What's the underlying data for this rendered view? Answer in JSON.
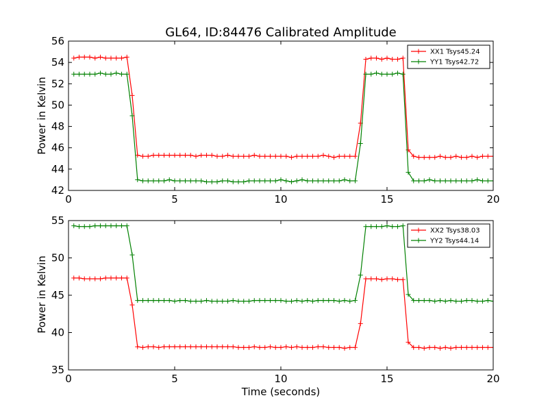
{
  "chart_data": [
    {
      "type": "line",
      "title": "GL64, ID:84476 Calibrated Amplitude",
      "xlabel": "",
      "ylabel": "Power in Kelvin",
      "xlim": [
        0,
        20
      ],
      "ylim": [
        42,
        56
      ],
      "xticks": [
        "0",
        "5",
        "10",
        "15",
        "20"
      ],
      "yticks": [
        "42",
        "44",
        "46",
        "48",
        "50",
        "52",
        "54",
        "56"
      ],
      "grid": false,
      "legend_position": "top-right",
      "x": [
        0.25,
        0.5,
        0.75,
        1.0,
        1.25,
        1.5,
        1.75,
        2.0,
        2.25,
        2.5,
        2.75,
        3.0,
        3.25,
        3.5,
        3.75,
        4.0,
        4.25,
        4.5,
        4.75,
        5.0,
        5.25,
        5.5,
        5.75,
        6.0,
        6.25,
        6.5,
        6.75,
        7.0,
        7.25,
        7.5,
        7.75,
        8.0,
        8.25,
        8.5,
        8.75,
        9.0,
        9.25,
        9.5,
        9.75,
        10.0,
        10.25,
        10.5,
        10.75,
        11.0,
        11.25,
        11.5,
        11.75,
        12.0,
        12.25,
        12.5,
        12.75,
        13.0,
        13.25,
        13.5,
        13.75,
        14.0,
        14.25,
        14.5,
        14.75,
        15.0,
        15.25,
        15.5,
        15.75,
        16.0,
        16.25,
        16.5,
        16.75,
        17.0,
        17.25,
        17.5,
        17.75,
        18.0,
        18.25,
        18.5,
        18.75,
        19.0,
        19.25,
        19.5,
        19.75,
        20.0
      ],
      "series": [
        {
          "name": "XX1 Tsys45.24",
          "color": "#ff0000",
          "values": [
            54.4,
            54.5,
            54.5,
            54.5,
            54.4,
            54.5,
            54.4,
            54.4,
            54.4,
            54.4,
            54.5,
            50.9,
            45.3,
            45.2,
            45.2,
            45.3,
            45.3,
            45.3,
            45.3,
            45.3,
            45.3,
            45.3,
            45.3,
            45.2,
            45.3,
            45.3,
            45.3,
            45.2,
            45.2,
            45.3,
            45.2,
            45.2,
            45.2,
            45.2,
            45.3,
            45.2,
            45.2,
            45.2,
            45.2,
            45.2,
            45.2,
            45.1,
            45.2,
            45.2,
            45.2,
            45.2,
            45.2,
            45.3,
            45.2,
            45.1,
            45.2,
            45.2,
            45.2,
            45.2,
            48.3,
            54.3,
            54.4,
            54.4,
            54.3,
            54.4,
            54.3,
            54.3,
            54.4,
            45.8,
            45.2,
            45.1,
            45.1,
            45.1,
            45.1,
            45.2,
            45.1,
            45.1,
            45.2,
            45.1,
            45.1,
            45.2,
            45.1,
            45.2,
            45.2,
            45.2
          ]
        },
        {
          "name": "YY1 Tsys42.72",
          "color": "#008000",
          "values": [
            52.9,
            52.9,
            52.9,
            52.9,
            52.9,
            53.0,
            52.9,
            52.9,
            53.0,
            52.9,
            52.9,
            49.0,
            43.0,
            42.9,
            42.9,
            42.9,
            42.9,
            42.9,
            43.0,
            42.9,
            42.9,
            42.9,
            42.9,
            42.9,
            42.9,
            42.8,
            42.8,
            42.8,
            42.9,
            42.9,
            42.8,
            42.8,
            42.8,
            42.9,
            42.9,
            42.9,
            42.9,
            42.9,
            42.9,
            43.0,
            42.9,
            42.8,
            42.9,
            43.0,
            42.9,
            42.9,
            42.9,
            42.9,
            42.9,
            42.9,
            42.9,
            43.0,
            42.9,
            42.9,
            46.4,
            52.9,
            52.9,
            53.0,
            52.9,
            52.9,
            52.9,
            53.0,
            52.9,
            43.7,
            42.9,
            42.9,
            42.9,
            43.0,
            42.9,
            42.9,
            42.9,
            42.9,
            42.9,
            42.9,
            42.9,
            42.9,
            43.0,
            42.9,
            42.9,
            42.9
          ]
        }
      ]
    },
    {
      "type": "line",
      "title": "",
      "xlabel": "Time (seconds)",
      "ylabel": "Power in Kelvin",
      "xlim": [
        0,
        20
      ],
      "ylim": [
        35,
        55
      ],
      "xticks": [
        "0",
        "5",
        "10",
        "15",
        "20"
      ],
      "yticks": [
        "35",
        "40",
        "45",
        "50",
        "55"
      ],
      "grid": false,
      "legend_position": "top-right",
      "x": [
        0.25,
        0.5,
        0.75,
        1.0,
        1.25,
        1.5,
        1.75,
        2.0,
        2.25,
        2.5,
        2.75,
        3.0,
        3.25,
        3.5,
        3.75,
        4.0,
        4.25,
        4.5,
        4.75,
        5.0,
        5.25,
        5.5,
        5.75,
        6.0,
        6.25,
        6.5,
        6.75,
        7.0,
        7.25,
        7.5,
        7.75,
        8.0,
        8.25,
        8.5,
        8.75,
        9.0,
        9.25,
        9.5,
        9.75,
        10.0,
        10.25,
        10.5,
        10.75,
        11.0,
        11.25,
        11.5,
        11.75,
        12.0,
        12.25,
        12.5,
        12.75,
        13.0,
        13.25,
        13.5,
        13.75,
        14.0,
        14.25,
        14.5,
        14.75,
        15.0,
        15.25,
        15.5,
        15.75,
        16.0,
        16.25,
        16.5,
        16.75,
        17.0,
        17.25,
        17.5,
        17.75,
        18.0,
        18.25,
        18.5,
        18.75,
        19.0,
        19.25,
        19.5,
        19.75,
        20.0
      ],
      "series": [
        {
          "name": "XX2 Tsys38.03",
          "color": "#ff0000",
          "values": [
            47.3,
            47.3,
            47.2,
            47.2,
            47.2,
            47.2,
            47.3,
            47.3,
            47.3,
            47.3,
            47.3,
            43.7,
            38.1,
            38.0,
            38.1,
            38.1,
            38.0,
            38.1,
            38.1,
            38.1,
            38.1,
            38.1,
            38.1,
            38.1,
            38.1,
            38.1,
            38.1,
            38.1,
            38.1,
            38.1,
            38.1,
            38.0,
            38.0,
            38.0,
            38.1,
            38.0,
            38.0,
            38.1,
            38.0,
            38.0,
            38.1,
            38.0,
            38.1,
            38.0,
            38.0,
            38.0,
            38.1,
            38.1,
            38.0,
            38.0,
            38.0,
            37.9,
            38.0,
            38.0,
            41.2,
            47.2,
            47.2,
            47.2,
            47.1,
            47.2,
            47.2,
            47.1,
            47.1,
            38.7,
            38.0,
            38.0,
            37.9,
            38.0,
            38.0,
            37.9,
            38.0,
            37.9,
            38.0,
            38.0,
            38.0,
            38.0,
            38.0,
            38.0,
            38.0,
            38.0
          ]
        },
        {
          "name": "YY2 Tsys44.14",
          "color": "#008000",
          "values": [
            54.3,
            54.2,
            54.2,
            54.2,
            54.3,
            54.3,
            54.3,
            54.3,
            54.3,
            54.3,
            54.3,
            50.4,
            44.3,
            44.3,
            44.3,
            44.3,
            44.3,
            44.3,
            44.3,
            44.2,
            44.3,
            44.3,
            44.2,
            44.2,
            44.2,
            44.3,
            44.2,
            44.2,
            44.2,
            44.2,
            44.3,
            44.2,
            44.2,
            44.2,
            44.3,
            44.3,
            44.3,
            44.3,
            44.3,
            44.3,
            44.2,
            44.2,
            44.3,
            44.2,
            44.3,
            44.2,
            44.3,
            44.3,
            44.3,
            44.3,
            44.2,
            44.3,
            44.2,
            44.3,
            47.7,
            54.2,
            54.2,
            54.2,
            54.2,
            54.3,
            54.2,
            54.2,
            54.3,
            45.1,
            44.3,
            44.3,
            44.3,
            44.3,
            44.2,
            44.3,
            44.2,
            44.3,
            44.2,
            44.2,
            44.3,
            44.3,
            44.2,
            44.2,
            44.3,
            44.2
          ]
        }
      ]
    }
  ]
}
